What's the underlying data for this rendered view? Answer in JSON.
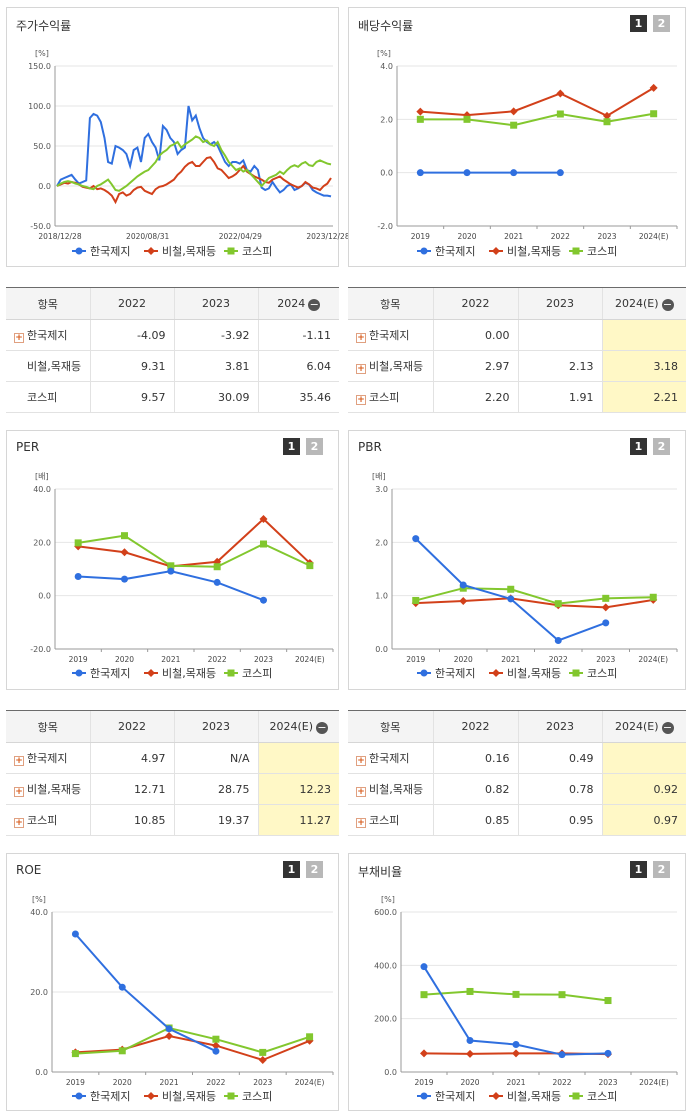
{
  "colors": {
    "company": "#2f6fdf",
    "industry": "#d2401a",
    "kospi": "#82c72e"
  },
  "icons": {
    "expand": "plus-icon",
    "collapse": "minus-circle-icon",
    "page1": "page-1-button",
    "page2": "page-2-button"
  },
  "pager": {
    "p1": "1",
    "p2": "2"
  },
  "legend": [
    "한국제지",
    "비철,목재등",
    "코스피"
  ],
  "stock": {
    "title": "주가수익률",
    "chart_data": {
      "type": "line",
      "title": "주가수익률",
      "unit": "[%]",
      "ylim": [
        -50,
        150
      ],
      "yticks": [
        "150.0",
        "100.0",
        "50.0",
        "0.0",
        "-50.0"
      ],
      "xtick_labels": [
        "2018/12/28",
        "2020/08/31",
        "2022/04/29",
        "2023/12/28"
      ],
      "series": [
        {
          "name": "한국제지",
          "values": [
            0,
            8,
            10,
            12,
            14,
            8,
            3,
            5,
            7,
            85,
            90,
            88,
            80,
            60,
            30,
            28,
            50,
            48,
            45,
            40,
            25,
            45,
            48,
            30,
            60,
            65,
            55,
            48,
            32,
            75,
            70,
            60,
            55,
            40,
            45,
            48,
            100,
            82,
            88,
            72,
            60,
            55,
            52,
            55,
            50,
            40,
            30,
            25,
            30,
            30,
            28,
            32,
            20,
            18,
            25,
            20,
            -2,
            -5,
            -3,
            5,
            -2,
            -8,
            -5,
            0,
            2,
            -5,
            -3,
            0,
            4,
            2,
            -5,
            -8,
            -10,
            -12,
            -12,
            -13
          ]
        },
        {
          "name": "비철,목재등",
          "values": [
            0,
            2,
            4,
            3,
            5,
            4,
            2,
            -1,
            -2,
            -3,
            0,
            -4,
            -3,
            -5,
            -8,
            -12,
            -20,
            -10,
            -8,
            -12,
            -10,
            -5,
            -2,
            -1,
            -6,
            -8,
            -10,
            -4,
            -1,
            0,
            2,
            5,
            8,
            14,
            18,
            24,
            28,
            30,
            25,
            25,
            30,
            35,
            36,
            30,
            22,
            20,
            15,
            10,
            12,
            15,
            20,
            25,
            18,
            15,
            12,
            10,
            8,
            5,
            4,
            8,
            10,
            12,
            8,
            5,
            2,
            0,
            -2,
            0,
            5,
            2,
            -2,
            -3,
            -5,
            0,
            3,
            10
          ]
        },
        {
          "name": "코스피",
          "values": [
            0,
            3,
            5,
            6,
            5,
            3,
            2,
            0,
            -1,
            -3,
            -4,
            0,
            2,
            5,
            8,
            2,
            -5,
            -6,
            -3,
            0,
            4,
            8,
            12,
            15,
            18,
            20,
            25,
            30,
            38,
            42,
            45,
            50,
            52,
            55,
            48,
            52,
            55,
            58,
            62,
            60,
            55,
            57,
            52,
            50,
            55,
            45,
            38,
            30,
            25,
            20,
            22,
            18,
            20,
            15,
            10,
            5,
            0,
            5,
            10,
            12,
            14,
            18,
            15,
            20,
            24,
            26,
            24,
            28,
            30,
            26,
            25,
            30,
            32,
            30,
            28,
            27
          ]
        }
      ]
    }
  },
  "stockTable": {
    "headers": [
      "항목",
      "2022",
      "2023",
      "2024"
    ],
    "rows": [
      {
        "label": "한국제지",
        "values": [
          "-4.09",
          "-3.92",
          "-1.11"
        ]
      },
      {
        "label": "비철,목재등",
        "values": [
          "9.31",
          "3.81",
          "6.04"
        ]
      },
      {
        "label": "코스피",
        "values": [
          "9.57",
          "30.09",
          "35.46"
        ]
      }
    ]
  },
  "dividend": {
    "title": "배당수익률",
    "chart_data": {
      "type": "line",
      "title": "배당수익률",
      "unit": "[%]",
      "categories": [
        "2019",
        "2020",
        "2021",
        "2022",
        "2023",
        "2024(E)"
      ],
      "ylim": [
        -2,
        4
      ],
      "yticks": [
        "4.0",
        "2.0",
        "0.0",
        "-2.0"
      ],
      "series": [
        {
          "name": "한국제지",
          "values": [
            0.0,
            0.0,
            0.0,
            0.0,
            null,
            null
          ]
        },
        {
          "name": "비철,목재등",
          "values": [
            2.29,
            2.16,
            2.3,
            2.97,
            2.13,
            3.18
          ]
        },
        {
          "name": "코스피",
          "values": [
            2.0,
            2.0,
            1.78,
            2.2,
            1.91,
            2.21
          ]
        }
      ]
    }
  },
  "dividendTable": {
    "headers": [
      "항목",
      "2022",
      "2023",
      "2024(E)"
    ],
    "rows": [
      {
        "label": "한국제지",
        "values": [
          "0.00",
          "",
          ""
        ]
      },
      {
        "label": "비철,목재등",
        "values": [
          "2.97",
          "2.13",
          "3.18"
        ]
      },
      {
        "label": "코스피",
        "values": [
          "2.20",
          "1.91",
          "2.21"
        ]
      }
    ]
  },
  "per": {
    "title": "PER",
    "chart_data": {
      "type": "line",
      "title": "PER",
      "unit": "[배]",
      "categories": [
        "2019",
        "2020",
        "2021",
        "2022",
        "2023",
        "2024(E)"
      ],
      "ylim": [
        -20,
        40
      ],
      "yticks": [
        "40.0",
        "20.0",
        "0.0",
        "-20.0"
      ],
      "series": [
        {
          "name": "한국제지",
          "values": [
            7.2,
            6.2,
            9.2,
            4.97,
            -1.7,
            null
          ]
        },
        {
          "name": "비철,목재등",
          "values": [
            18.5,
            16.3,
            11.0,
            12.71,
            28.75,
            12.23
          ]
        },
        {
          "name": "코스피",
          "values": [
            19.8,
            22.5,
            11.2,
            10.85,
            19.37,
            11.27
          ]
        }
      ]
    }
  },
  "perTable": {
    "headers": [
      "항목",
      "2022",
      "2023",
      "2024(E)"
    ],
    "rows": [
      {
        "label": "한국제지",
        "values": [
          "4.97",
          "N/A",
          ""
        ]
      },
      {
        "label": "비철,목재등",
        "values": [
          "12.71",
          "28.75",
          "12.23"
        ]
      },
      {
        "label": "코스피",
        "values": [
          "10.85",
          "19.37",
          "11.27"
        ]
      }
    ]
  },
  "pbr": {
    "title": "PBR",
    "chart_data": {
      "type": "line",
      "title": "PBR",
      "unit": "[배]",
      "categories": [
        "2019",
        "2020",
        "2021",
        "2022",
        "2023",
        "2024(E)"
      ],
      "ylim": [
        0,
        3
      ],
      "yticks": [
        "3.0",
        "2.0",
        "1.0",
        "0.0"
      ],
      "series": [
        {
          "name": "한국제지",
          "values": [
            2.07,
            1.2,
            0.94,
            0.16,
            0.49,
            null
          ]
        },
        {
          "name": "비철,목재등",
          "values": [
            0.86,
            0.9,
            0.95,
            0.82,
            0.78,
            0.92
          ]
        },
        {
          "name": "코스피",
          "values": [
            0.91,
            1.14,
            1.12,
            0.85,
            0.95,
            0.97
          ]
        }
      ]
    }
  },
  "pbrTable": {
    "headers": [
      "항목",
      "2022",
      "2023",
      "2024(E)"
    ],
    "rows": [
      {
        "label": "한국제지",
        "values": [
          "0.16",
          "0.49",
          ""
        ]
      },
      {
        "label": "비철,목재등",
        "values": [
          "0.82",
          "0.78",
          "0.92"
        ]
      },
      {
        "label": "코스피",
        "values": [
          "0.85",
          "0.95",
          "0.97"
        ]
      }
    ]
  },
  "roe": {
    "title": "ROE",
    "chart_data": {
      "type": "line",
      "title": "ROE",
      "unit": "[%]",
      "categories": [
        "2019",
        "2020",
        "2021",
        "2022",
        "2023",
        "2024(E)"
      ],
      "ylim": [
        0,
        40
      ],
      "yticks": [
        "40.0",
        "20.0",
        "0.0"
      ],
      "series": [
        {
          "name": "한국제지",
          "values": [
            34.5,
            21.2,
            10.8,
            5.2,
            null,
            null
          ]
        },
        {
          "name": "비철,목재등",
          "values": [
            4.9,
            5.6,
            9.0,
            6.6,
            3.0,
            7.8
          ]
        },
        {
          "name": "코스피",
          "values": [
            4.6,
            5.3,
            11.0,
            8.2,
            4.9,
            8.8
          ]
        }
      ]
    }
  },
  "debt": {
    "title": "부채비율",
    "chart_data": {
      "type": "line",
      "title": "부채비율",
      "unit": "[%]",
      "categories": [
        "2019",
        "2020",
        "2021",
        "2022",
        "2023",
        "2024(E)"
      ],
      "ylim": [
        0,
        600
      ],
      "yticks": [
        "600.0",
        "400.0",
        "200.0",
        "0.0"
      ],
      "series": [
        {
          "name": "한국제지",
          "values": [
            395,
            118,
            103,
            65,
            70,
            null
          ]
        },
        {
          "name": "비철,목재등",
          "values": [
            70,
            68,
            70,
            70,
            67,
            null
          ]
        },
        {
          "name": "코스피",
          "values": [
            290,
            302,
            291,
            290,
            268,
            null
          ]
        }
      ]
    }
  }
}
